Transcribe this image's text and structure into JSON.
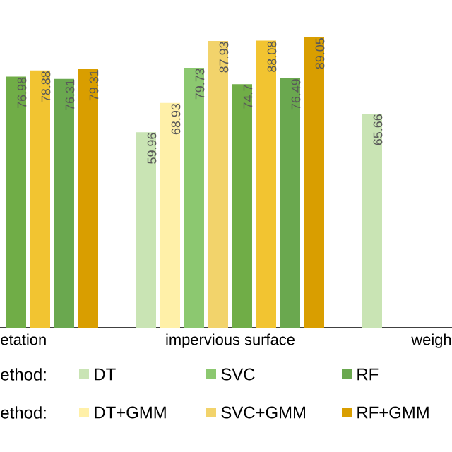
{
  "chart_data": {
    "type": "bar",
    "categories": [
      "etation",
      "impervious surface",
      "weigh"
    ],
    "series": [
      {
        "name": "DT",
        "color": "#c9e4b4",
        "values": [
          null,
          59.96,
          65.66
        ]
      },
      {
        "name": "DT+GMM",
        "color": "#fff0a8",
        "values": [
          null,
          68.93,
          null
        ]
      },
      {
        "name": "SVC",
        "color": "#8cc870",
        "values": [
          null,
          79.73,
          null
        ]
      },
      {
        "name": "SVC+GMM",
        "color": "#f2d36b",
        "values": [
          null,
          87.93,
          null
        ]
      },
      {
        "color": "#70ad47",
        "values": [
          76.98,
          74.7,
          null
        ]
      },
      {
        "color": "#f2c431",
        "values": [
          78.88,
          88.08,
          null
        ]
      },
      {
        "name": "RF",
        "color": "#6aa84f",
        "values": [
          76.31,
          76.49,
          null
        ]
      },
      {
        "name": "RF+GMM",
        "color": "#d99e00",
        "values": [
          79.31,
          89.05,
          null
        ]
      }
    ],
    "data_labels": true,
    "legend": "bottom",
    "annotations": [
      "ethod:",
      "ethod:"
    ]
  }
}
